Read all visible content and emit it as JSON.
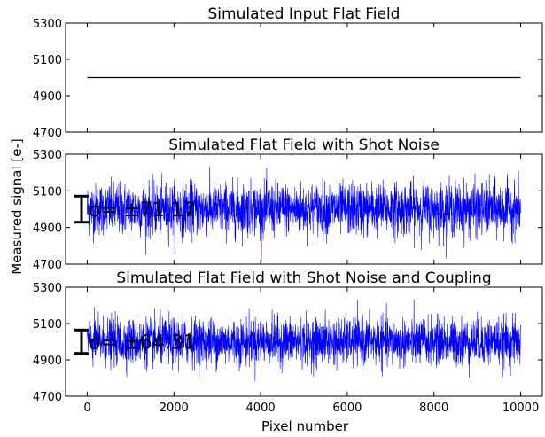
{
  "figure": {
    "ylabel": "Measured signal [e-]",
    "xlabel": "Pixel number"
  },
  "chart_data": [
    {
      "type": "line",
      "title": "Simulated Input Flat Field",
      "ylim": [
        4700,
        5300
      ],
      "yticks": [
        4700,
        4900,
        5100,
        5300
      ],
      "xlim": [
        -500,
        10500
      ],
      "series": [
        {
          "color": "#000000",
          "x": [
            0,
            10000
          ],
          "y": [
            5000,
            5000
          ]
        }
      ]
    },
    {
      "type": "line",
      "title": "Simulated Flat Field with Shot Noise",
      "ylim": [
        4700,
        5300
      ],
      "yticks": [
        4700,
        4900,
        5100,
        5300
      ],
      "xlim": [
        -500,
        10500
      ],
      "series": [
        {
          "color": "#0000ff",
          "x_range": [
            0,
            10000
          ],
          "mean": 5000,
          "std": 71.17
        }
      ],
      "annotation": {
        "text": "σ= ±71.17",
        "center": 5000,
        "half_height": 71.17
      }
    },
    {
      "type": "line",
      "title": "Simulated Flat Field with Shot Noise and Coupling",
      "ylim": [
        4700,
        5300
      ],
      "yticks": [
        4700,
        4900,
        5100,
        5300
      ],
      "xlim": [
        -500,
        10500
      ],
      "xticks": [
        0,
        2000,
        4000,
        6000,
        8000,
        10000
      ],
      "series": [
        {
          "color": "#0000ff",
          "x_range": [
            0,
            10000
          ],
          "mean": 5000,
          "std": 64.31
        }
      ],
      "annotation": {
        "text": "σ= ±64.31",
        "center": 5000,
        "half_height": 64.31
      }
    }
  ]
}
